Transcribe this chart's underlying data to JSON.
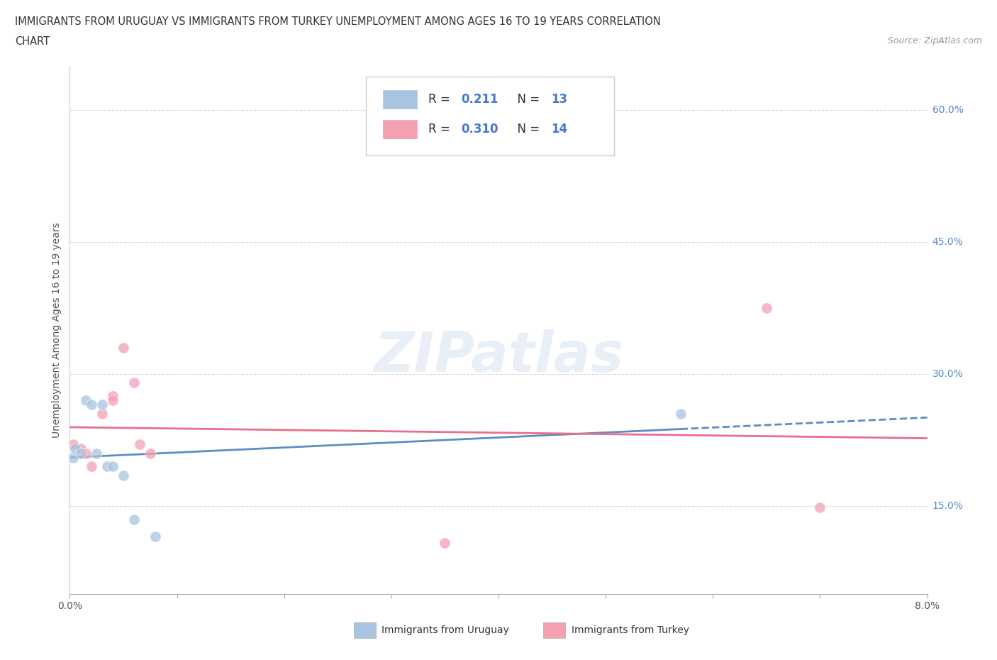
{
  "title_line1": "IMMIGRANTS FROM URUGUAY VS IMMIGRANTS FROM TURKEY UNEMPLOYMENT AMONG AGES 16 TO 19 YEARS CORRELATION",
  "title_line2": "CHART",
  "source": "Source: ZipAtlas.com",
  "ylabel": "Unemployment Among Ages 16 to 19 years",
  "xlim": [
    0.0,
    0.08
  ],
  "ylim": [
    0.05,
    0.65
  ],
  "yticks": [
    0.15,
    0.3,
    0.45,
    0.6
  ],
  "color_uruguay": "#a8c4e0",
  "color_turkey": "#f4a0b0",
  "color_uruguay_line": "#5b8ec4",
  "color_turkey_line": "#e8708a",
  "R_uruguay": 0.211,
  "N_uruguay": 13,
  "R_turkey": 0.31,
  "N_turkey": 14,
  "uruguay_x": [
    0.0003,
    0.0005,
    0.001,
    0.0015,
    0.002,
    0.0025,
    0.003,
    0.0035,
    0.004,
    0.005,
    0.006,
    0.008,
    0.057
  ],
  "uruguay_y": [
    0.205,
    0.215,
    0.21,
    0.27,
    0.265,
    0.21,
    0.265,
    0.195,
    0.195,
    0.185,
    0.135,
    0.115,
    0.255
  ],
  "turkey_x": [
    0.0003,
    0.001,
    0.0015,
    0.002,
    0.003,
    0.004,
    0.004,
    0.005,
    0.006,
    0.0065,
    0.0075,
    0.035,
    0.065,
    0.07
  ],
  "turkey_y": [
    0.22,
    0.215,
    0.21,
    0.195,
    0.255,
    0.275,
    0.27,
    0.33,
    0.29,
    0.22,
    0.21,
    0.108,
    0.375,
    0.148
  ],
  "watermark": "ZIPatlas",
  "background_color": "#ffffff",
  "grid_color": "#cccccc",
  "legend_label_uruguay": "Immigrants from Uruguay",
  "legend_label_turkey": "Immigrants from Turkey"
}
